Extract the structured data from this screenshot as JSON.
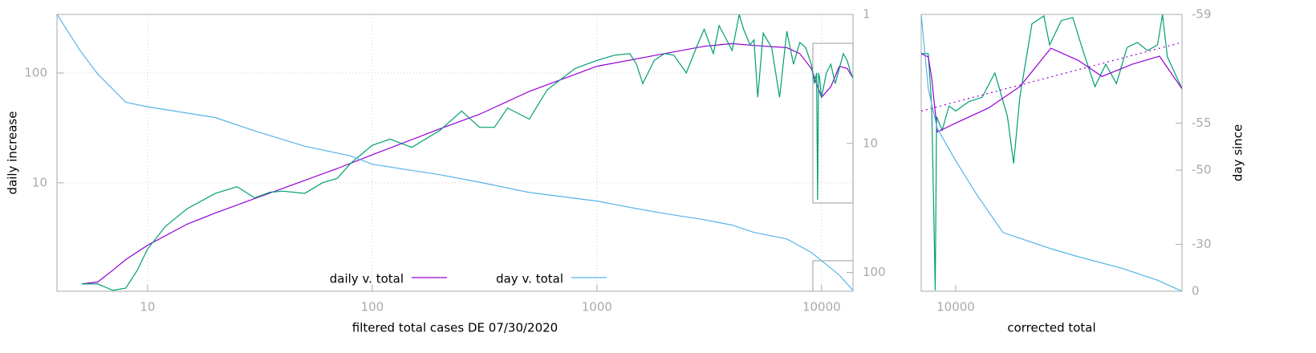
{
  "chart_data": [
    {
      "type": "line",
      "x_label": "filtered total cases DE 07/30/2020",
      "y_label": "daily increase",
      "xlog": true,
      "ylog": true,
      "y2log": true,
      "y2reversed": true,
      "grid": true,
      "legend": "bottom",
      "xlim": [
        3.95,
        13800
      ],
      "xticks": [
        10,
        100,
        1000,
        10000
      ],
      "ylim": [
        1.03,
        341
      ],
      "yticks": [
        10,
        100
      ],
      "y2lim": [
        1,
        140
      ],
      "y2ticks": [
        1,
        10,
        100
      ],
      "series": [
        {
          "name": "daily v. total",
          "color": "#9400d3",
          "x": [
            5.1,
            6,
            7,
            8,
            10,
            15,
            20,
            30,
            50,
            70,
            100,
            200,
            300,
            500,
            1000,
            2000,
            3000,
            4000,
            5000,
            7000,
            8000,
            9000,
            10000,
            11000,
            12000,
            13000,
            13800
          ],
          "values": [
            1.2,
            1.25,
            1.6,
            2.0,
            2.7,
            4.2,
            5.3,
            7.2,
            10.5,
            13.5,
            18,
            31,
            42,
            68,
            115,
            150,
            175,
            185,
            178,
            170,
            150,
            110,
            60,
            75,
            115,
            110,
            90
          ]
        },
        {
          "color": "#009e73",
          "x": [
            5.1,
            6,
            7,
            8,
            9,
            10,
            12,
            15,
            20,
            25,
            30,
            35,
            40,
            50,
            60,
            70,
            80,
            100,
            120,
            150,
            200,
            250,
            300,
            350,
            400,
            500,
            600,
            800,
            1000,
            1200,
            1400,
            1500,
            1600,
            1800,
            2000,
            2200,
            2500,
            2800,
            3000,
            3300,
            3500,
            4000,
            4300,
            4500,
            4800,
            5000,
            5200,
            5500,
            6000,
            6500,
            7000,
            7500,
            8000,
            8500,
            9000,
            9300,
            9500,
            9600,
            9700,
            9800,
            10000,
            10500,
            11000,
            11500,
            12000,
            12500,
            13000,
            13500,
            13800
          ],
          "values": [
            1.2,
            1.2,
            1.05,
            1.1,
            1.6,
            2.5,
            4,
            5.8,
            8,
            9.2,
            7.3,
            8.2,
            8.4,
            8,
            10,
            11,
            15,
            22,
            25,
            21,
            30,
            45,
            32,
            32,
            48,
            38,
            70,
            110,
            130,
            145,
            150,
            120,
            80,
            130,
            150,
            145,
            100,
            180,
            250,
            150,
            270,
            160,
            340,
            250,
            180,
            200,
            60,
            230,
            170,
            60,
            240,
            120,
            190,
            170,
            120,
            80,
            100,
            7,
            100,
            90,
            60,
            100,
            120,
            80,
            110,
            150,
            130,
            100,
            90
          ]
        },
        {
          "name": "day v. total",
          "color": "#56b4e9",
          "axis": "y2",
          "x": [
            3.95,
            5,
            6,
            8,
            10,
            20,
            30,
            50,
            80,
            100,
            200,
            300,
            500,
            1000,
            1500,
            2000,
            3000,
            4000,
            5000,
            7000,
            9000,
            10000,
            12000,
            13800
          ],
          "values": [
            1,
            1.9,
            2.9,
            4.8,
            5.2,
            6.3,
            8,
            10.5,
            12.5,
            14.5,
            17.5,
            20,
            24,
            28,
            32,
            35,
            39,
            43,
            49,
            55,
            70,
            81,
            105,
            138
          ]
        }
      ]
    },
    {
      "type": "line",
      "x_label": "corrected total",
      "y2_label": "day since",
      "xlog": true,
      "ylog": true,
      "y2log": true,
      "y2reversed": true,
      "xlim": [
        9500,
        14000
      ],
      "xticks": [
        10000
      ],
      "ylim": [
        1.03,
        341
      ],
      "y2lim": [
        -59,
        0
      ],
      "y2ticks": [
        -59,
        -55,
        -50,
        -30,
        0
      ],
      "series": [
        {
          "color": "#009e73",
          "x": [
            9500,
            9600,
            9650,
            9700,
            9720,
            9800,
            9900,
            10000,
            10200,
            10400,
            10600,
            10800,
            10900,
            11000,
            11200,
            11400,
            11500,
            11700,
            11900,
            12100,
            12300,
            12500,
            12700,
            12900,
            13100,
            13300,
            13500,
            13600,
            13700,
            14000
          ],
          "values": [
            150,
            150,
            50,
            1.05,
            40,
            30,
            50,
            45,
            55,
            60,
            100,
            40,
            15,
            60,
            280,
            330,
            180,
            300,
            320,
            150,
            75,
            120,
            80,
            170,
            190,
            160,
            180,
            340,
            140,
            72
          ]
        },
        {
          "color": "#9400d3",
          "x": [
            9500,
            9600,
            9650,
            9730,
            10000,
            10500,
            11000,
            11520,
            12000,
            12430,
            13000,
            13540,
            14000
          ],
          "values": [
            150,
            140,
            90,
            29,
            35,
            48,
            75,
            168,
            130,
            93,
            120,
            142,
            72
          ]
        },
        {
          "color": "#9400d3",
          "dash": "dotted",
          "x": [
            9500,
            14000
          ],
          "values": [
            45,
            190
          ]
        },
        {
          "color": "#56b4e9",
          "axis": "y2",
          "x": [
            9500,
            9600,
            9730,
            10000,
            10300,
            10728,
            11520,
            12000,
            12830,
            13500,
            14000
          ],
          "values": [
            -59,
            -57,
            -54.6,
            -51.3,
            -46,
            -34.8,
            -28,
            -24,
            -17,
            -9,
            0
          ]
        }
      ]
    }
  ]
}
